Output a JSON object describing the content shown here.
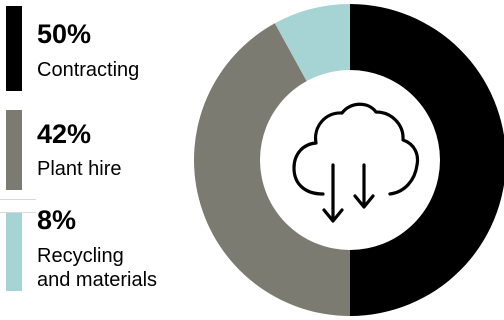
{
  "chart_data": {
    "type": "pie",
    "categories": [
      "Contracting",
      "Plant hire",
      "Recycling and materials"
    ],
    "values": [
      50,
      42,
      8
    ],
    "value_labels": [
      "50%",
      "42%",
      "8%"
    ],
    "label_lines": [
      [
        "Contracting"
      ],
      [
        "Plant hire"
      ],
      [
        "Recycling",
        "and materials"
      ]
    ],
    "colors": [
      "#000000",
      "#7b7b72",
      "#a6d3d3"
    ],
    "hole": true,
    "center_icon": "cloud-download-icon"
  }
}
